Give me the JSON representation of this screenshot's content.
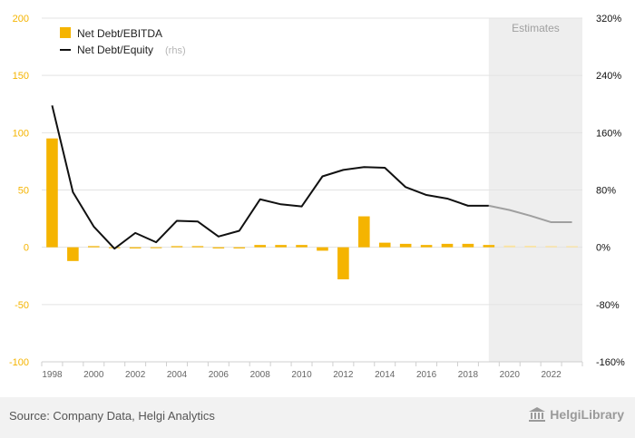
{
  "chart_data": {
    "type": "bar",
    "legend": {
      "placement": "top-left",
      "bar_label": "Net Debt/EBITDA",
      "line_label": "Net Debt/Equity",
      "line_suffix": "(rhs)"
    },
    "estimates_label": "Estimates",
    "estimates_start_year": 2019,
    "y_left": {
      "min": -100,
      "max": 200,
      "ticks": [
        "-100",
        "-50",
        "0",
        "50",
        "100",
        "150",
        "200"
      ],
      "tick_values": [
        -100,
        -50,
        0,
        50,
        100,
        150,
        200
      ]
    },
    "y_right": {
      "min": -160,
      "max": 320,
      "ticks": [
        "-160%",
        "-80%",
        "0%",
        "80%",
        "160%",
        "240%",
        "320%"
      ],
      "tick_values": [
        -160,
        -80,
        0,
        80,
        160,
        240,
        320
      ]
    },
    "x_ticks": [
      "1998",
      "2000",
      "2002",
      "2004",
      "2006",
      "2008",
      "2010",
      "2012",
      "2014",
      "2016",
      "2018",
      "2020",
      "2022"
    ],
    "years": [
      1998,
      1999,
      2000,
      2001,
      2002,
      2003,
      2004,
      2005,
      2006,
      2007,
      2008,
      2009,
      2010,
      2011,
      2012,
      2013,
      2014,
      2015,
      2016,
      2017,
      2018,
      2019,
      2020,
      2021,
      2022,
      2023
    ],
    "series": [
      {
        "name": "Net Debt/EBITDA",
        "axis": "left",
        "values": [
          95,
          -12,
          1,
          0,
          -1,
          0,
          1,
          1,
          -1,
          -1,
          2,
          2,
          2,
          -3,
          -28,
          27,
          4,
          3,
          2,
          3,
          3,
          2,
          1.5,
          1.3,
          1.1,
          1.0
        ]
      },
      {
        "name": "Net Debt/Equity",
        "axis": "right",
        "values": [
          198,
          77,
          29,
          -2,
          20,
          7,
          37,
          36,
          15,
          23,
          67,
          60,
          57,
          99,
          108,
          112,
          111,
          84,
          73,
          68,
          58,
          58,
          52,
          44,
          35,
          35
        ]
      }
    ],
    "colors": {
      "bar": "#f5b400",
      "line": "#111111",
      "estimate_line": "#a0a0a0",
      "estimate_bar": "#fbe3a0",
      "estimate_band": "#eeeeee"
    }
  },
  "footer": {
    "source": "Source: Company Data, Helgi Analytics",
    "brand": "HelgiLibrary",
    "logo_icon": "library-building-icon"
  }
}
